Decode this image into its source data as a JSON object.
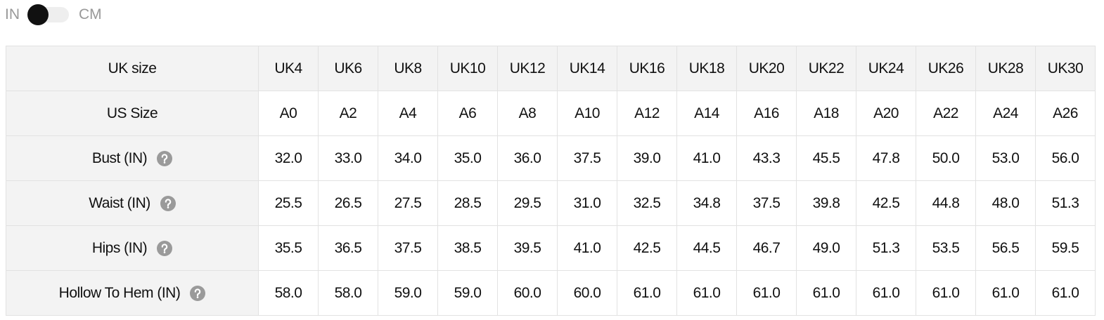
{
  "toggle": {
    "left_label": "IN",
    "right_label": "CM"
  },
  "table": {
    "rows": [
      [
        "UK size",
        "UK4",
        "UK6",
        "UK8",
        "UK10",
        "UK12",
        "UK14",
        "UK16",
        "UK18",
        "UK20",
        "UK22",
        "UK24",
        "UK26",
        "UK28",
        "UK30"
      ],
      [
        "US Size",
        "A0",
        "A2",
        "A4",
        "A6",
        "A8",
        "A10",
        "A12",
        "A14",
        "A16",
        "A18",
        "A20",
        "A22",
        "A24",
        "A26"
      ],
      [
        "Bust (IN)",
        "32.0",
        "33.0",
        "34.0",
        "35.0",
        "36.0",
        "37.5",
        "39.0",
        "41.0",
        "43.3",
        "45.5",
        "47.8",
        "50.0",
        "53.0",
        "56.0"
      ],
      [
        "Waist (IN)",
        "25.5",
        "26.5",
        "27.5",
        "28.5",
        "29.5",
        "31.0",
        "32.5",
        "34.8",
        "37.5",
        "39.8",
        "42.5",
        "44.8",
        "48.0",
        "51.3"
      ],
      [
        "Hips (IN)",
        "35.5",
        "36.5",
        "37.5",
        "38.5",
        "39.5",
        "41.0",
        "42.5",
        "44.5",
        "46.7",
        "49.0",
        "51.3",
        "53.5",
        "56.5",
        "59.5"
      ],
      [
        "Hollow To Hem (IN)",
        "58.0",
        "58.0",
        "59.0",
        "59.0",
        "60.0",
        "60.0",
        "61.0",
        "61.0",
        "61.0",
        "61.0",
        "61.0",
        "61.0",
        "61.0",
        "61.0"
      ]
    ]
  }
}
